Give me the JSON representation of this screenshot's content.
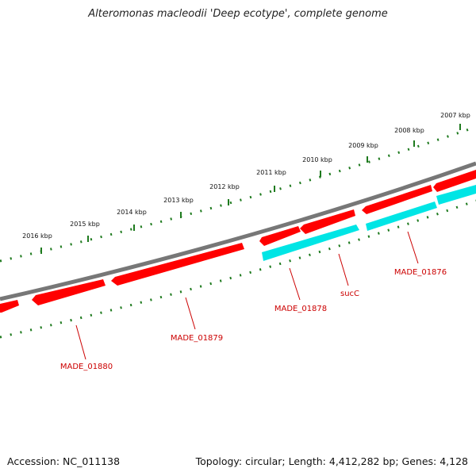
{
  "title": "Alteromonas macleodii 'Deep ecotype', complete genome",
  "footer": {
    "accession": "Accession: NC_011138",
    "topology": "Topology: circular; Length: 4,412,282 bp; Genes: 4,128"
  },
  "colors": {
    "backbone": "#777777",
    "forward_gene": "#ff0000",
    "reverse_gene": "#00e5e5",
    "ticks": "#1e7a1e",
    "gene_label": "#cc0000"
  },
  "ruler": [
    {
      "label": "2016 kbp"
    },
    {
      "label": "2015 kbp"
    },
    {
      "label": "2014 kbp"
    },
    {
      "label": "2013 kbp"
    },
    {
      "label": "2012 kbp"
    },
    {
      "label": "2011 kbp"
    },
    {
      "label": "2010 kbp"
    },
    {
      "label": "2009 kbp"
    },
    {
      "label": "2008 kbp"
    },
    {
      "label": "2007 kbp"
    }
  ],
  "genes": [
    {
      "label": "MADE_01880"
    },
    {
      "label": "MADE_01879"
    },
    {
      "label": "MADE_01878"
    },
    {
      "label": "sucC"
    },
    {
      "label": "MADE_01876"
    }
  ]
}
